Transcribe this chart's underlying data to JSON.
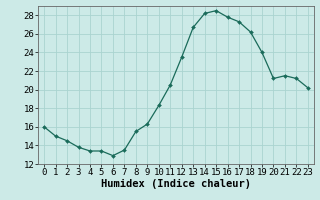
{
  "x": [
    0,
    1,
    2,
    3,
    4,
    5,
    6,
    7,
    8,
    9,
    10,
    11,
    12,
    13,
    14,
    15,
    16,
    17,
    18,
    19,
    20,
    21,
    22,
    23
  ],
  "y": [
    16.0,
    15.0,
    14.5,
    13.8,
    13.4,
    13.4,
    12.9,
    13.5,
    15.5,
    16.3,
    18.3,
    20.5,
    23.5,
    26.7,
    28.2,
    28.5,
    27.8,
    27.3,
    26.2,
    24.0,
    21.2,
    21.5,
    21.2,
    20.2
  ],
  "line_color": "#1a6b5a",
  "marker_color": "#1a6b5a",
  "bg_color": "#cceae7",
  "grid_color": "#aad4d0",
  "xlabel": "Humidex (Indice chaleur)",
  "ylim": [
    12,
    29
  ],
  "xlim": [
    -0.5,
    23.5
  ],
  "yticks": [
    12,
    14,
    16,
    18,
    20,
    22,
    24,
    26,
    28
  ],
  "xticks": [
    0,
    1,
    2,
    3,
    4,
    5,
    6,
    7,
    8,
    9,
    10,
    11,
    12,
    13,
    14,
    15,
    16,
    17,
    18,
    19,
    20,
    21,
    22,
    23
  ],
  "tick_label_fontsize": 6.5,
  "xlabel_fontsize": 7.5
}
